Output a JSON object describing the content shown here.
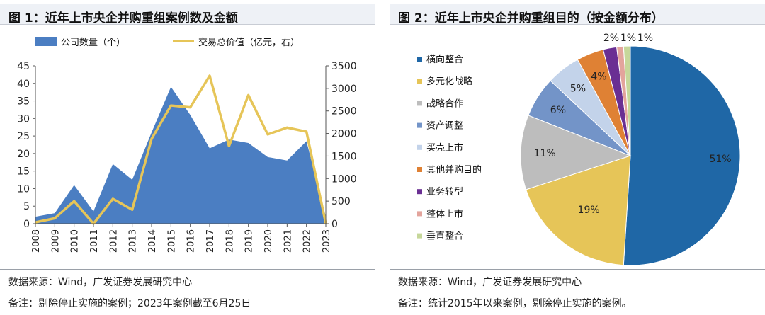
{
  "left": {
    "title": "图 1：近年上市央企并购重组案例数及金额",
    "source": "数据来源：Wind，广发证券发展研究中心",
    "footnote": "备注：剔除停止实施的案例；2023年案例截至6月25日"
  },
  "right": {
    "title": "图 2：近年上市央企并购重组目的（按金额分布）",
    "source": "数据来源：Wind，广发证券发展研究中心",
    "footnote": "备注：统计2015年以来案例，剔除停止实施的案例。"
  },
  "colors": {
    "area": "#4b7ec2",
    "line": "#e6c558"
  },
  "chart_data": [
    {
      "type": "area",
      "title": "图 1：近年上市央企并购重组案例数及金额",
      "x": [
        "2008",
        "2009",
        "2010",
        "2011",
        "2012",
        "2013",
        "2014",
        "2015",
        "2016",
        "2017",
        "2018",
        "2019",
        "2020",
        "2021",
        "2022",
        "2023"
      ],
      "y_left_ticks": [
        "0",
        "5",
        "10",
        "15",
        "20",
        "25",
        "30",
        "35",
        "40",
        "45"
      ],
      "y_right_ticks": [
        "0",
        "500",
        "1000",
        "1500",
        "2000",
        "2500",
        "3000",
        "3500"
      ],
      "ylim_left": [
        0,
        45
      ],
      "ylim_right": [
        0,
        3500
      ],
      "legend_position": "top",
      "series": [
        {
          "name": "公司数量（个）",
          "type": "area",
          "axis": "left",
          "color": "#4b7ec2",
          "values": [
            2,
            3,
            11,
            3.5,
            17,
            12.5,
            26,
            39,
            31,
            21.5,
            24,
            23,
            19,
            18,
            23.5,
            2
          ]
        },
        {
          "name": "交易总价值（亿元，右）",
          "type": "line",
          "axis": "right",
          "color": "#e6c558",
          "values": [
            30,
            120,
            500,
            0,
            550,
            310,
            1880,
            2620,
            2580,
            3280,
            1720,
            2850,
            1980,
            2130,
            2040,
            0
          ]
        }
      ]
    },
    {
      "type": "pie",
      "title": "图 2：近年上市央企并购重组目的（按金额分布）",
      "legend_position": "left",
      "slices": [
        {
          "label": "横向整合",
          "value": 51,
          "display": "51%",
          "color": "#1f67a6"
        },
        {
          "label": "多元化战略",
          "value": 19,
          "display": "19%",
          "color": "#e6c558"
        },
        {
          "label": "战略合作",
          "value": 11,
          "display": "11%",
          "color": "#bdbdbd"
        },
        {
          "label": "资产调整",
          "value": 6,
          "display": "6%",
          "color": "#7394c8"
        },
        {
          "label": "买壳上市",
          "value": 5,
          "display": "5%",
          "color": "#c3d3ea"
        },
        {
          "label": "其他并购目的",
          "value": 4,
          "display": "4%",
          "color": "#df8134"
        },
        {
          "label": "业务转型",
          "value": 2,
          "display": "2%",
          "color": "#6a2f93"
        },
        {
          "label": "整体上市",
          "value": 1,
          "display": "1%",
          "color": "#e3a49c"
        },
        {
          "label": "垂直整合",
          "value": 1,
          "display": "1%",
          "color": "#c6d79a"
        }
      ]
    }
  ]
}
